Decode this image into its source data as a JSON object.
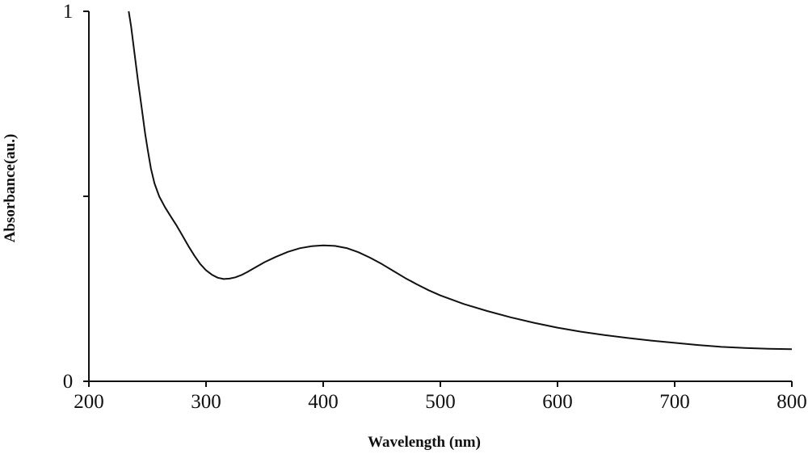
{
  "chart_data": {
    "type": "line",
    "title": "",
    "xlabel": "Wavelength (nm)",
    "ylabel": "Absorbance(au.)",
    "xlim": [
      200,
      800
    ],
    "ylim": [
      0,
      1
    ],
    "grid": false,
    "x_ticks": [
      200,
      300,
      400,
      500,
      600,
      700,
      800
    ],
    "x_tick_labels": [
      "200",
      "300",
      "400",
      "500",
      "600",
      "700",
      "800"
    ],
    "y_ticks": [
      0,
      0.5,
      1
    ],
    "y_tick_labels": [
      "0",
      "",
      "1"
    ],
    "colors": {
      "line": "#111111",
      "axis": "#111111"
    },
    "series": [
      {
        "x": [
          234,
          236,
          238,
          240,
          242,
          245,
          248,
          250,
          253,
          256,
          260,
          265,
          270,
          275,
          280,
          285,
          290,
          295,
          300,
          305,
          310,
          315,
          320,
          325,
          330,
          335,
          340,
          350,
          360,
          370,
          380,
          390,
          400,
          410,
          420,
          430,
          440,
          450,
          460,
          470,
          480,
          490,
          500,
          520,
          540,
          560,
          580,
          600,
          620,
          640,
          660,
          680,
          700,
          720,
          740,
          760,
          780,
          800
        ],
        "y": [
          1.0,
          0.96,
          0.91,
          0.86,
          0.81,
          0.74,
          0.67,
          0.63,
          0.575,
          0.535,
          0.5,
          0.47,
          0.445,
          0.42,
          0.393,
          0.365,
          0.34,
          0.317,
          0.3,
          0.288,
          0.28,
          0.2765,
          0.2775,
          0.281,
          0.287,
          0.295,
          0.304,
          0.322,
          0.337,
          0.35,
          0.3595,
          0.365,
          0.3675,
          0.366,
          0.36,
          0.349,
          0.334,
          0.317,
          0.298,
          0.279,
          0.262,
          0.246,
          0.232,
          0.209,
          0.19,
          0.173,
          0.158,
          0.145,
          0.134,
          0.125,
          0.117,
          0.11,
          0.104,
          0.098,
          0.093,
          0.09,
          0.088,
          0.087
        ]
      }
    ]
  }
}
